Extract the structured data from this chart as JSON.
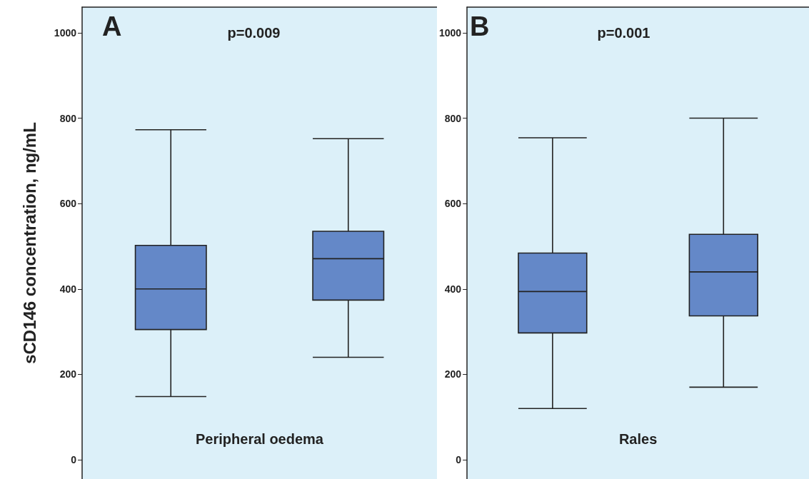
{
  "chart_data": [
    {
      "type": "box",
      "categories": [
        null,
        null
      ],
      "xlabel": "Peripheral oedema",
      "ylabel": "sCD146 concentration, ng/mL",
      "annotations": [
        "A",
        "p=0.009"
      ],
      "color": "#6488c8",
      "ylim": [
        -45,
        1060
      ],
      "yticks": [
        0,
        200,
        400,
        600,
        800,
        1000
      ],
      "boxes": [
        {
          "low": 148,
          "q1": 305,
          "median": 400,
          "q3": 502,
          "high": 773
        },
        {
          "low": 240,
          "q1": 374,
          "median": 471,
          "q3": 535,
          "high": 752
        }
      ]
    },
    {
      "type": "box",
      "categories": [
        null,
        null
      ],
      "xlabel": "Rales",
      "annotations": [
        "B",
        "p=0.001"
      ],
      "color": "#6488c8",
      "ylim": [
        -45,
        1060
      ],
      "yticks": [
        0,
        200,
        400,
        600,
        800,
        1000
      ],
      "boxes": [
        {
          "low": 120,
          "q1": 297,
          "median": 394,
          "q3": 484,
          "high": 754
        },
        {
          "low": 170,
          "q1": 337,
          "median": 440,
          "q3": 528,
          "high": 800
        }
      ]
    }
  ]
}
